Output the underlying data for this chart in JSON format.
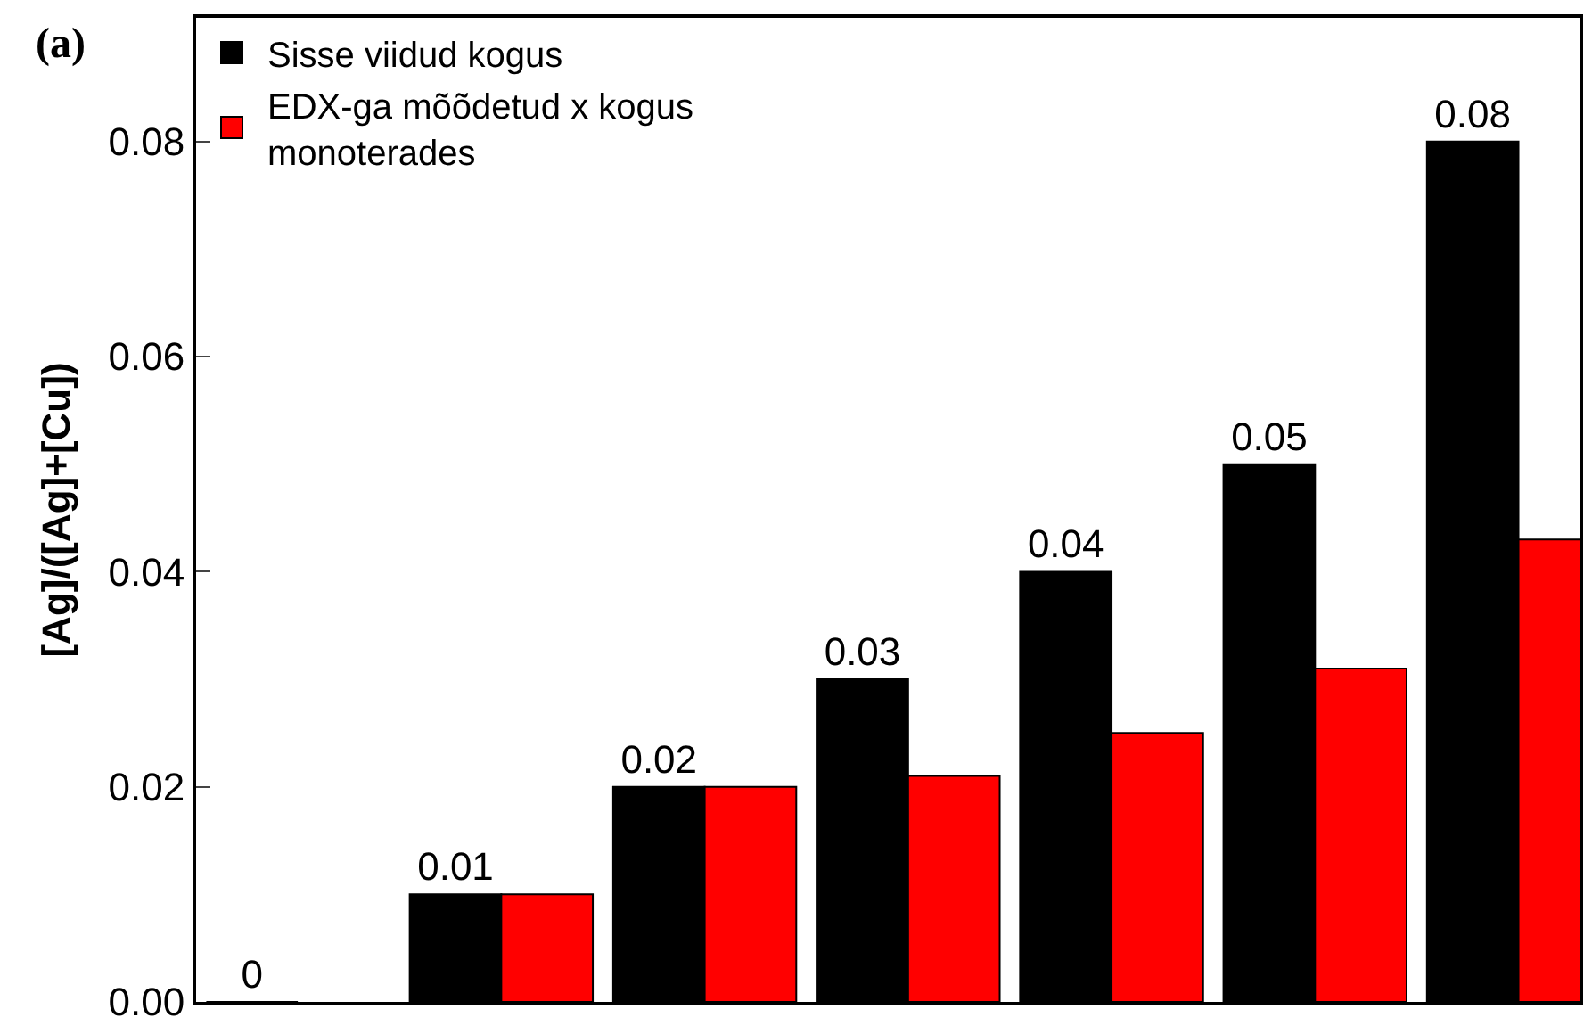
{
  "chart_data": {
    "type": "bar",
    "title": "(a)",
    "ylabel": "[Ag]/([Ag]+[Cu])",
    "categories": [
      null,
      null,
      null,
      null,
      null,
      null,
      null
    ],
    "series": [
      {
        "name": "Sisse viidud kogus",
        "color": "#000000",
        "values": [
          0,
          0.01,
          0.02,
          0.03,
          0.04,
          0.05,
          0.08
        ],
        "value_labels": [
          "0",
          "0.01",
          "0.02",
          "0.03",
          "0.04",
          "0.05",
          "0.08"
        ]
      },
      {
        "name": "EDX-ga mõõdetud x kogus monoterades",
        "color": "#ff0000",
        "values": [
          null,
          0.01,
          0.02,
          0.021,
          0.025,
          0.031,
          0.043
        ]
      }
    ],
    "ylim": [
      0,
      0.0915
    ],
    "yticks": [
      {
        "value": 0,
        "label": "0.00"
      },
      {
        "value": 0.02,
        "label": "0.02"
      },
      {
        "value": 0.04,
        "label": "0.04"
      },
      {
        "value": 0.06,
        "label": "0.06"
      },
      {
        "value": 0.08,
        "label": "0.08"
      }
    ],
    "legend": "top left"
  }
}
